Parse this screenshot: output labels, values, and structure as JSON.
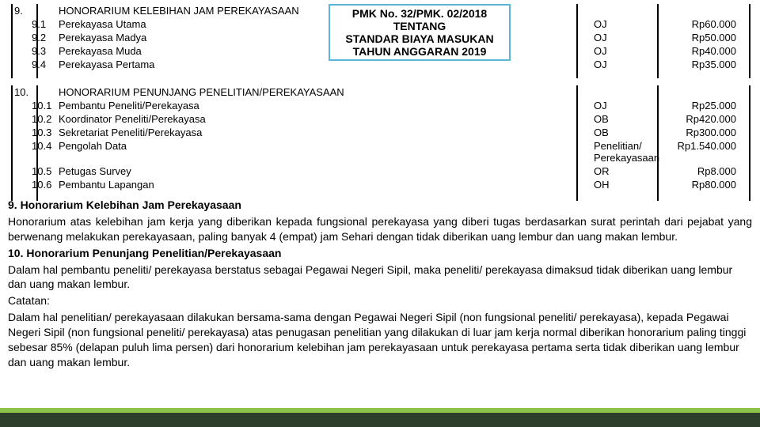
{
  "header_box": {
    "line1": "PMK No.  32/PMK. 02/2018",
    "line2": "TENTANG",
    "line3": "STANDAR BIAYA MASUKAN",
    "line4": "TAHUN ANGGARAN 2019"
  },
  "section9": {
    "num": "9.",
    "title": "HONORARIUM KELEBIHAN JAM PEREKAYASAAN",
    "rows": [
      {
        "sub": "9.1",
        "desc": "Perekayasa Utama",
        "unit": "OJ",
        "amt": "Rp60.000"
      },
      {
        "sub": "9.2",
        "desc": "Perekayasa Madya",
        "unit": "OJ",
        "amt": "Rp50.000"
      },
      {
        "sub": "9.3",
        "desc": "Perekayasa Muda",
        "unit": "OJ",
        "amt": "Rp40.000"
      },
      {
        "sub": "9.4",
        "desc": "Perekayasa Pertama",
        "unit": "OJ",
        "amt": "Rp35.000"
      }
    ]
  },
  "section10": {
    "num": "10.",
    "title": "HONORARIUM PENUNJANG PENELITIAN/PEREKAYASAAN",
    "rows": [
      {
        "sub": "10.1",
        "desc": "Pembantu Peneliti/Perekayasa",
        "unit": "OJ",
        "amt": "Rp25.000"
      },
      {
        "sub": "10.2",
        "desc": "Koordinator Peneliti/Perekayasa",
        "unit": "OB",
        "amt": "Rp420.000"
      },
      {
        "sub": "10.3",
        "desc": "Sekretariat Peneliti/Perekayasa",
        "unit": "OB",
        "amt": "Rp300.000"
      },
      {
        "sub": "10.4",
        "desc": "Pengolah Data",
        "unit": "Penelitian/ Perekayasaan",
        "amt": "Rp1.540.000"
      },
      {
        "sub": "10.5",
        "desc": "Petugas Survey",
        "unit": "OR",
        "amt": "Rp8.000"
      },
      {
        "sub": "10.6",
        "desc": "Pembantu Lapangan",
        "unit": "OH",
        "amt": "Rp80.000"
      }
    ]
  },
  "body": {
    "h9": "9. Honorarium Kelebihan Jam Perekayasaan",
    "p9": "Honorarium atas kelebihan jam kerja yang diberikan kepada fungsional perekayasa yang diberi tugas berdasarkan surat perintah dari pejabat yang berwenang melakukan perekayasaan, paling banyak 4 (empat) jam Sehari dengan tidak diberikan uang lembur dan uang makan lembur.",
    "h10": "10. Honorarium Penunjang Penelitian/Perekayasaan",
    "p10a": "Dalam hal pembantu peneliti/ perekayasa berstatus sebagai Pegawai Negeri Sipil, maka peneliti/ perekayasa dimaksud tidak diberikan uang lembur dan uang makan lembur.",
    "cat": "Catatan:",
    "p10b": "Dalam hal penelitian/ perekayasaan dilakukan bersama-sama dengan Pegawai Negeri Sipil (non fungsional peneliti/ perekayasa), kepada Pegawai Negeri Sipil (non fungsional peneliti/ perekayasa) atas penugasan penelitian yang dilakukan di luar jam kerja normal diberikan honorarium paling tinggi sebesar 85% (delapan puluh lima persen) dari honorarium kelebihan jam perekayasaan untuk perekayasa pertama serta tidak diberikan uang lembur dan uang makan lembur."
  },
  "vlines": {
    "positions": [
      4,
      36,
      718,
      820,
      936
    ],
    "height_s9": 94,
    "height_s10": 146,
    "color": "#000000"
  },
  "footer": {
    "dark": "#2d3e2a",
    "light": "#8bc34a"
  }
}
